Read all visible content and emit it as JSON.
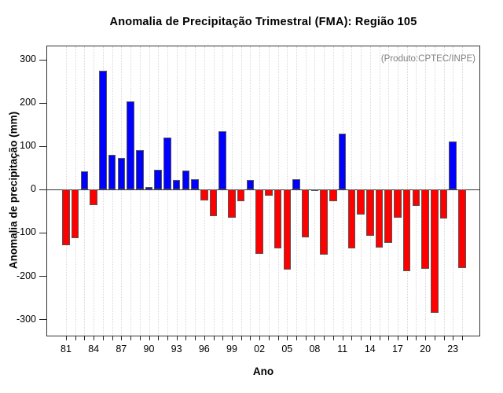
{
  "page": {
    "title": "Anomalia de Precipitação Trimestral (FMA): Região 105"
  },
  "chart_data": {
    "type": "bar",
    "title": "Anomalia de Precipitação Trimestral (FMA): Região 105",
    "xlabel": "Ano",
    "ylabel": "Anomalia de precipitação (mm)",
    "annotation": "(Produto:CPTEC/INPE)",
    "years": [
      1981,
      1982,
      1983,
      1984,
      1985,
      1986,
      1987,
      1988,
      1989,
      1990,
      1991,
      1992,
      1993,
      1994,
      1995,
      1996,
      1997,
      1998,
      1999,
      2000,
      2001,
      2002,
      2003,
      2004,
      2005,
      2006,
      2007,
      2008,
      2009,
      2010,
      2011,
      2012,
      2013,
      2014,
      2015,
      2016,
      2017,
      2018,
      2019,
      2020,
      2021,
      2022,
      2023,
      2024
    ],
    "year_labels": [
      "81",
      "82",
      "83",
      "84",
      "85",
      "86",
      "87",
      "88",
      "89",
      "90",
      "91",
      "92",
      "93",
      "94",
      "95",
      "96",
      "97",
      "98",
      "99",
      "00",
      "01",
      "02",
      "03",
      "04",
      "05",
      "06",
      "07",
      "08",
      "09",
      "10",
      "11",
      "12",
      "13",
      "14",
      "15",
      "16",
      "17",
      "18",
      "19",
      "20",
      "21",
      "22",
      "23",
      "24"
    ],
    "values": [
      -130,
      -113,
      42,
      -37,
      273,
      79,
      72,
      203,
      90,
      5,
      45,
      119,
      22,
      43,
      24,
      -25,
      -62,
      134,
      -65,
      -28,
      21,
      -150,
      -15,
      -136,
      -186,
      24,
      -112,
      -2,
      -152,
      -27,
      128,
      -137,
      -58,
      -107,
      -134,
      -123,
      -66,
      -190,
      -38,
      -184,
      -285,
      -68,
      110,
      -182
    ],
    "x_tick_labels_shown": [
      "81",
      "84",
      "87",
      "90",
      "93",
      "96",
      "99",
      "02",
      "05",
      "08",
      "11",
      "14",
      "17",
      "20",
      "23"
    ],
    "x_label_every": 3,
    "y_ticks": [
      300,
      200,
      100,
      0,
      -100,
      -200,
      -300
    ],
    "ylim": [
      -338,
      330
    ],
    "grid": "vertical-dotted",
    "legend": "none",
    "colors": {
      "positive": "#0000FF",
      "negative": "#FF0000",
      "bar_border": "#555555",
      "grid": "#d8d8d8",
      "axis": "#333333",
      "annotation_text": "#808080"
    },
    "layout": {
      "first_center": 24,
      "step": 11.72,
      "bar_width": 9.6
    }
  }
}
